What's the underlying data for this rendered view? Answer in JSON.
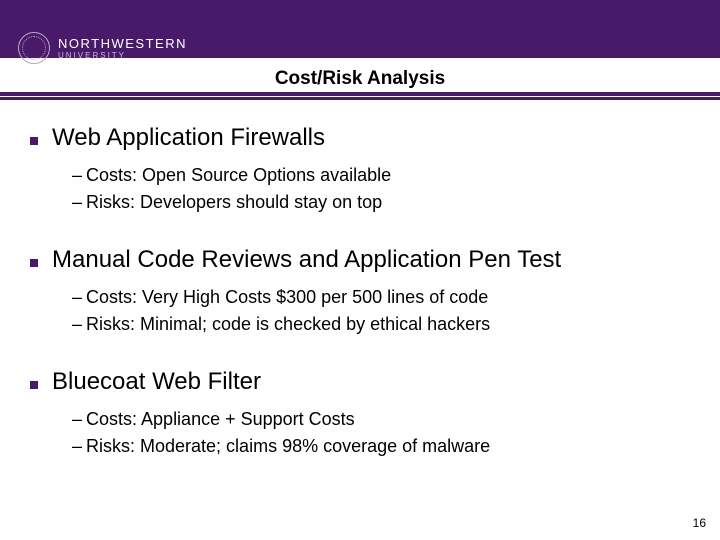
{
  "header": {
    "brand_main": "NORTHWESTERN",
    "brand_sub": "UNIVERSITY",
    "title": "Cost/Risk Analysis",
    "bg_color": "#4a1a6a"
  },
  "sections": [
    {
      "title": "Web Application Firewalls",
      "items": [
        "Costs: Open Source Options available",
        "Risks: Developers should stay on top"
      ]
    },
    {
      "title": "Manual Code Reviews and Application Pen Test",
      "items": [
        "Costs: Very High Costs $300 per 500 lines of code",
        "Risks: Minimal; code is checked by ethical hackers"
      ]
    },
    {
      "title": "Bluecoat Web Filter",
      "items": [
        "Costs: Appliance + Support Costs",
        "Risks: Moderate; claims 98% coverage of malware"
      ]
    }
  ],
  "page_number": "16"
}
